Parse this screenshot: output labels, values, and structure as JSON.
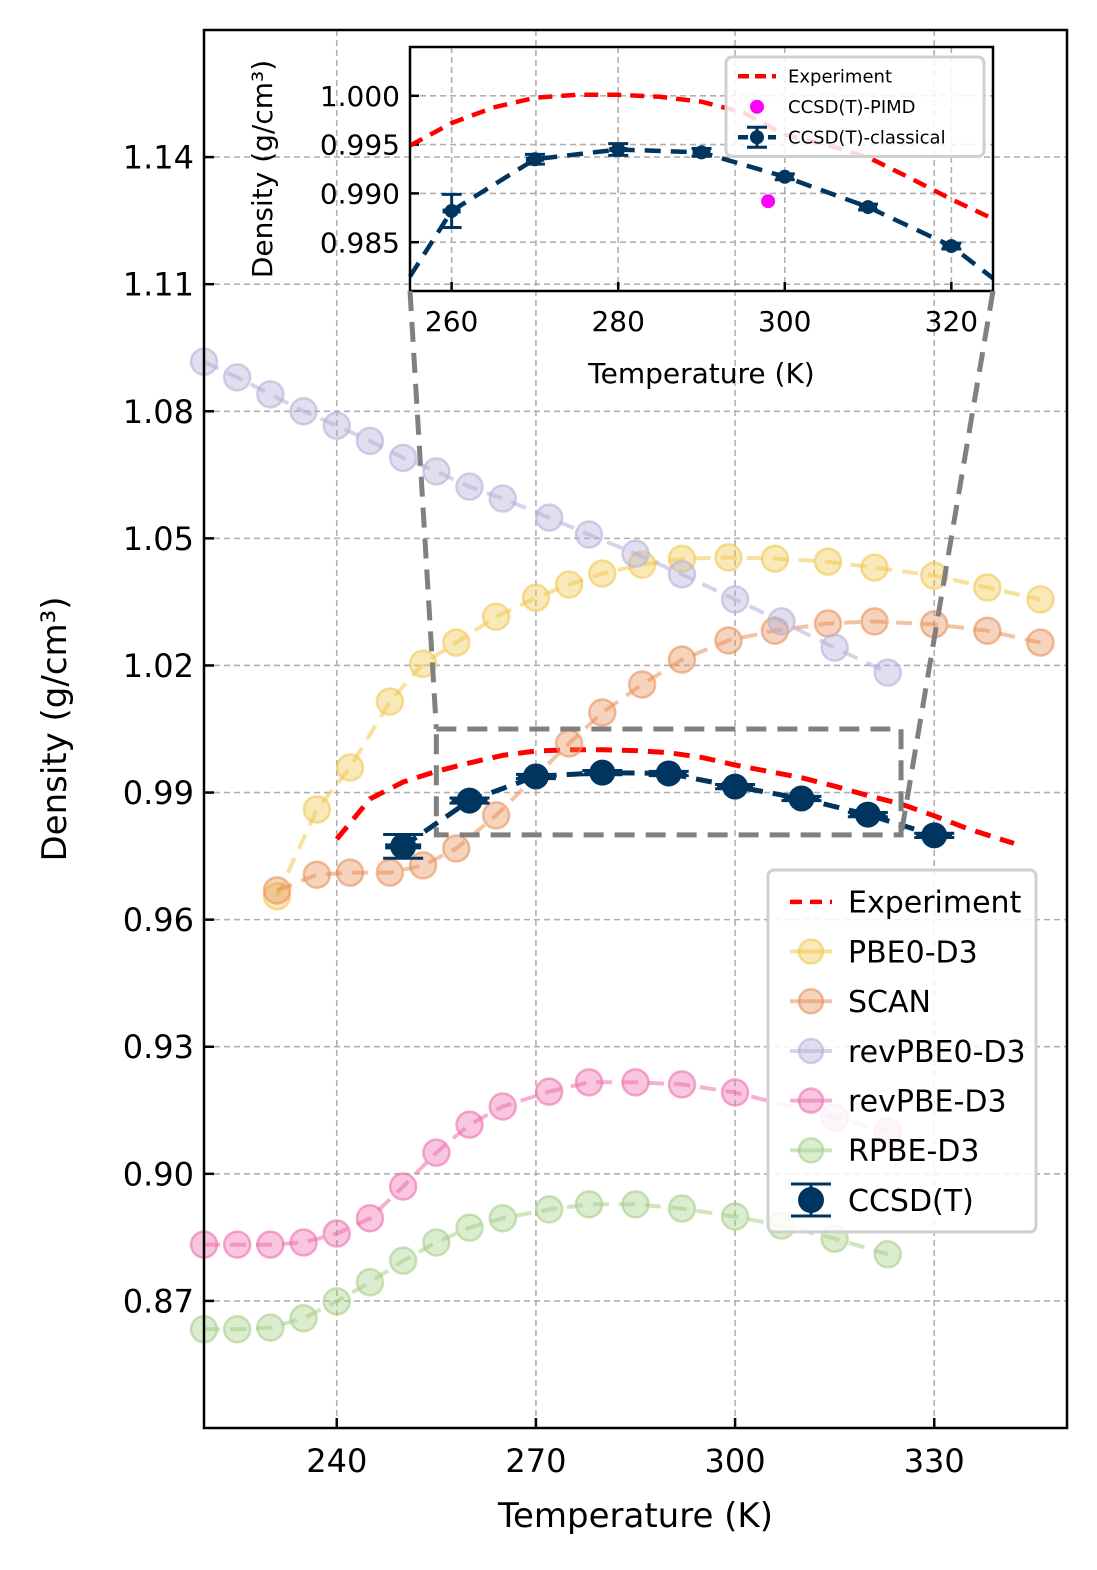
{
  "chart_data": [
    {
      "type": "line",
      "xlabel": "Temperature (K)",
      "ylabel": "Density (g/cm³)",
      "xlim": [
        220,
        350
      ],
      "ylim": [
        0.84,
        1.17
      ],
      "x_ticks": [
        240,
        270,
        300,
        330
      ],
      "x_tick_labels": [
        "240",
        "270",
        "300",
        "330"
      ],
      "y_ticks": [
        0.87,
        0.9,
        0.93,
        0.96,
        0.99,
        1.02,
        1.05,
        1.08,
        1.11,
        1.14
      ],
      "y_tick_labels": [
        "0.87",
        "0.90",
        "0.93",
        "0.96",
        "0.99",
        "1.02",
        "1.05",
        "1.08",
        "1.11",
        "1.14"
      ],
      "grid": true,
      "legend_position": "lower-right",
      "zoom_box": {
        "x": [
          255,
          325
        ],
        "y": [
          0.98,
          1.005
        ]
      },
      "series": [
        {
          "name": "Experiment",
          "style": "dashed-line",
          "color": "#ff0000",
          "points": [
            [
              240,
              0.979
            ],
            [
              245,
              0.9885
            ],
            [
              250,
              0.9925
            ],
            [
              255,
              0.995
            ],
            [
              260,
              0.997
            ],
            [
              265,
              0.9988
            ],
            [
              270,
              0.9998
            ],
            [
              275,
              1.0001
            ],
            [
              280,
              1.0001
            ],
            [
              285,
              0.9999
            ],
            [
              290,
              0.9994
            ],
            [
              295,
              0.9983
            ],
            [
              300,
              0.9965
            ],
            [
              305,
              0.995
            ],
            [
              310,
              0.9935
            ],
            [
              315,
              0.9915
            ],
            [
              320,
              0.9893
            ],
            [
              325,
              0.9873
            ],
            [
              330,
              0.9845
            ],
            [
              335,
              0.9815
            ],
            [
              342,
              0.978
            ]
          ]
        },
        {
          "name": "PBE0-D3",
          "style": "faded-circles",
          "color": "#f0c850",
          "points": [
            [
              231,
              0.9655
            ],
            [
              237,
              0.986
            ],
            [
              242,
              0.9959
            ],
            [
              248,
              1.0115
            ],
            [
              253,
              1.0204
            ],
            [
              258,
              1.0254
            ],
            [
              264,
              1.0315
            ],
            [
              270,
              1.036
            ],
            [
              275,
              1.0391
            ],
            [
              280,
              1.0417
            ],
            [
              286,
              1.0438
            ],
            [
              292,
              1.0452
            ],
            [
              299,
              1.0455
            ],
            [
              306,
              1.0452
            ],
            [
              314,
              1.0445
            ],
            [
              321,
              1.0431
            ],
            [
              330,
              1.0412
            ],
            [
              338,
              1.0384
            ],
            [
              346,
              1.0356
            ]
          ]
        },
        {
          "name": "SCAN",
          "style": "faded-circles",
          "color": "#e8915a",
          "points": [
            [
              231,
              0.9669
            ],
            [
              237,
              0.9706
            ],
            [
              242,
              0.9711
            ],
            [
              248,
              0.9711
            ],
            [
              253,
              0.9728
            ],
            [
              258,
              0.9768
            ],
            [
              264,
              0.9846
            ],
            [
              275,
              1.0016
            ],
            [
              280,
              1.0089
            ],
            [
              286,
              1.0155
            ],
            [
              292,
              1.0214
            ],
            [
              299,
              1.0259
            ],
            [
              306,
              1.0282
            ],
            [
              314,
              1.0299
            ],
            [
              321,
              1.0304
            ],
            [
              330,
              1.0297
            ],
            [
              338,
              1.0282
            ],
            [
              346,
              1.0254
            ]
          ]
        },
        {
          "name": "revPBE0-D3",
          "style": "faded-circles",
          "color": "#b4b0d8",
          "points": [
            [
              220,
              1.0917
            ],
            [
              225,
              1.088
            ],
            [
              230,
              1.084
            ],
            [
              235,
              1.08
            ],
            [
              240,
              1.0766
            ],
            [
              245,
              1.073
            ],
            [
              250,
              1.069
            ],
            [
              255,
              1.0658
            ],
            [
              260,
              1.0622
            ],
            [
              265,
              1.0594
            ],
            [
              272,
              1.0549
            ],
            [
              278,
              1.0509
            ],
            [
              285,
              1.0464
            ],
            [
              292,
              1.0415
            ],
            [
              300,
              1.0356
            ],
            [
              307,
              1.0304
            ],
            [
              315,
              1.0242
            ],
            [
              323,
              1.0183
            ]
          ]
        },
        {
          "name": "revPBE-D3",
          "style": "faded-circles",
          "color": "#ee70b0",
          "points": [
            [
              220,
              0.8833
            ],
            [
              225,
              0.8833
            ],
            [
              230,
              0.8833
            ],
            [
              235,
              0.8838
            ],
            [
              240,
              0.8859
            ],
            [
              245,
              0.8895
            ],
            [
              250,
              0.897
            ],
            [
              255,
              0.905
            ],
            [
              260,
              0.9116
            ],
            [
              265,
              0.9159
            ],
            [
              272,
              0.9194
            ],
            [
              278,
              0.9216
            ],
            [
              285,
              0.9216
            ],
            [
              292,
              0.9211
            ],
            [
              300,
              0.9192
            ],
            [
              315,
              0.9133
            ],
            [
              323,
              0.91
            ]
          ]
        },
        {
          "name": "RPBE-D3",
          "style": "faded-circles",
          "color": "#a6cf88",
          "points": [
            [
              220,
              0.8633
            ],
            [
              225,
              0.8633
            ],
            [
              230,
              0.8637
            ],
            [
              235,
              0.8659
            ],
            [
              240,
              0.8699
            ],
            [
              245,
              0.8744
            ],
            [
              250,
              0.8795
            ],
            [
              255,
              0.8838
            ],
            [
              260,
              0.8873
            ],
            [
              265,
              0.8895
            ],
            [
              272,
              0.8916
            ],
            [
              278,
              0.8928
            ],
            [
              285,
              0.8928
            ],
            [
              292,
              0.8918
            ],
            [
              300,
              0.8899
            ],
            [
              307,
              0.8878
            ],
            [
              315,
              0.8847
            ],
            [
              323,
              0.881
            ]
          ]
        },
        {
          "name": "CCSD(T)",
          "style": "errorbar-circles",
          "color": "#003560",
          "points": [
            [
              250,
              0.9773
            ],
            [
              260,
              0.9881
            ],
            [
              270,
              0.9938
            ],
            [
              280,
              0.9947
            ],
            [
              290,
              0.9945
            ],
            [
              300,
              0.9914
            ],
            [
              310,
              0.9886
            ],
            [
              320,
              0.9848
            ],
            [
              330,
              0.9799
            ]
          ],
          "errors": [
            0.0028,
            0.0006,
            0.0005,
            0.0005,
            0.0005,
            0.0005,
            0.0005,
            0.0005,
            0.0005
          ]
        }
      ]
    },
    {
      "type": "line",
      "xlabel": "Temperature (K)",
      "ylabel": "Density (g/cm³)",
      "xlim": [
        255,
        325
      ],
      "ylim": [
        0.98,
        1.005
      ],
      "x_ticks": [
        260,
        280,
        300,
        320
      ],
      "x_tick_labels": [
        "260",
        "280",
        "300",
        "320"
      ],
      "y_ticks": [
        0.985,
        0.99,
        0.995,
        1.0
      ],
      "y_tick_labels": [
        "0.985",
        "0.990",
        "0.995",
        "1.000"
      ],
      "grid": true,
      "legend_position": "upper-right",
      "series": [
        {
          "name": "Experiment",
          "style": "dashed-line",
          "color": "#ff0000",
          "points": [
            [
              255,
              0.9949
            ],
            [
              260,
              0.9972
            ],
            [
              265,
              0.9988
            ],
            [
              270,
              0.9998
            ],
            [
              275,
              1.0001
            ],
            [
              280,
              1.0001
            ],
            [
              285,
              0.9999
            ],
            [
              290,
              0.9994
            ],
            [
              295,
              0.9983
            ],
            [
              300,
              0.996
            ],
            [
              305,
              0.995
            ],
            [
              310,
              0.9937
            ],
            [
              315,
              0.9916
            ],
            [
              320,
              0.9894
            ],
            [
              325,
              0.9874
            ]
          ]
        },
        {
          "name": "CCSD(T)-PIMD",
          "style": "point",
          "color": "#ff00ff",
          "points": [
            [
              298,
              0.9892
            ]
          ]
        },
        {
          "name": "CCSD(T)-classical",
          "style": "errorbar-dashed",
          "color": "#003560",
          "points": [
            [
              255,
              0.9815
            ],
            [
              260,
              0.9882
            ],
            [
              270,
              0.9935
            ],
            [
              280,
              0.9945
            ],
            [
              290,
              0.9942
            ],
            [
              300,
              0.9917
            ],
            [
              310,
              0.9886
            ],
            [
              320,
              0.9846
            ],
            [
              325,
              0.9813
            ]
          ],
          "markers": [
            false,
            true,
            true,
            true,
            true,
            true,
            true,
            true,
            false
          ],
          "errors": [
            0,
            0.0017,
            0.0005,
            0.0006,
            0.0004,
            0.0003,
            0.0003,
            0.0003,
            0
          ]
        }
      ]
    }
  ]
}
